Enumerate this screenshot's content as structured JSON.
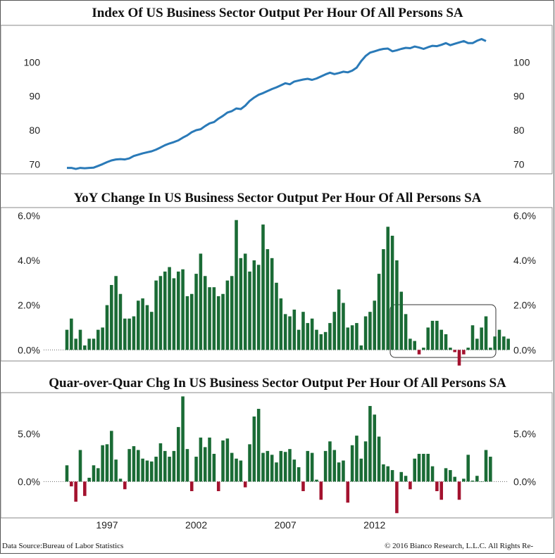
{
  "footer": {
    "source": "Data Source:Bureau of Labor Statistics",
    "copyright": "© 2016 Bianco Research, L.L.C. All Rights Re-"
  },
  "colors": {
    "line": "#2a7ab8",
    "positive": "#1a6b35",
    "negative": "#a3122e"
  },
  "chart_data": [
    {
      "type": "line",
      "title": "Index Of US Business Sector Output Per Hour Of All Persons SA",
      "x_start": 1994.75,
      "x_step": 0.25,
      "ylim": [
        68,
        110
      ],
      "yticks": [
        "70",
        "80",
        "90",
        "100"
      ],
      "ytick_values": [
        70,
        80,
        90,
        100
      ],
      "values": [
        68.9,
        68.9,
        68.6,
        68.9,
        68.8,
        68.9,
        69.0,
        69.5,
        70.0,
        70.6,
        71.1,
        71.4,
        71.5,
        71.4,
        71.7,
        72.4,
        72.8,
        73.2,
        73.5,
        73.8,
        74.3,
        74.9,
        75.6,
        76.1,
        76.5,
        77.0,
        77.8,
        78.5,
        79.4,
        80.0,
        80.3,
        81.2,
        82.0,
        82.4,
        83.4,
        84.2,
        85.2,
        85.6,
        86.4,
        86.2,
        87.2,
        88.6,
        89.6,
        90.4,
        90.9,
        91.5,
        92.1,
        92.6,
        93.2,
        93.8,
        93.5,
        94.3,
        94.6,
        94.9,
        95.1,
        94.8,
        95.2,
        95.8,
        96.4,
        96.9,
        96.5,
        96.8,
        97.2,
        97.0,
        97.5,
        98.4,
        100.3,
        101.8,
        102.8,
        103.2,
        103.6,
        103.9,
        104.0,
        103.2,
        103.5,
        103.9,
        104.2,
        104.1,
        104.6,
        104.3,
        103.9,
        104.4,
        104.8,
        104.7,
        105.1,
        105.6,
        105.0,
        105.4,
        105.8,
        106.2,
        105.6,
        105.6,
        106.3,
        106.8,
        106.2
      ]
    },
    {
      "type": "bar",
      "title": "YoY Change In US Business Sector Output Per Hour Of All Persons SA",
      "x_start": 1994.75,
      "x_step": 0.25,
      "ylim": [
        -0.4,
        6.2
      ],
      "yticks": [
        "0.0%",
        "2.0%",
        "4.0%",
        "6.0%"
      ],
      "ytick_values": [
        0,
        2,
        4,
        6
      ],
      "values": [
        0.9,
        1.4,
        0.5,
        0.9,
        0.2,
        0.5,
        0.5,
        0.9,
        1.0,
        2.0,
        2.9,
        3.3,
        2.5,
        1.4,
        1.4,
        1.5,
        2.2,
        2.3,
        2.0,
        1.7,
        3.1,
        3.3,
        3.5,
        3.7,
        3.2,
        3.5,
        3.6,
        2.4,
        2.5,
        3.4,
        4.3,
        3.3,
        2.8,
        2.8,
        2.4,
        2.5,
        3.1,
        3.3,
        5.8,
        4.1,
        4.3,
        3.5,
        4.0,
        3.8,
        5.6,
        4.5,
        4.1,
        3.0,
        2.3,
        1.6,
        1.5,
        1.8,
        0.9,
        1.7,
        1.2,
        1.4,
        0.9,
        0.7,
        0.8,
        1.2,
        1.7,
        2.7,
        2.1,
        1.0,
        1.1,
        1.2,
        0.2,
        1.5,
        1.7,
        2.2,
        3.4,
        4.5,
        5.5,
        5.1,
        4.0,
        2.6,
        1.6,
        0.5,
        0.4,
        -0.2,
        0.1,
        1.0,
        1.3,
        1.3,
        0.9,
        0.7,
        0.1,
        -0.1,
        -0.7,
        -0.2,
        0.1,
        1.1,
        0.5,
        1.0,
        1.5,
        0.1,
        0.6,
        0.9,
        0.6,
        0.5
      ]
    },
    {
      "type": "bar",
      "title": "Quar-over-Quar Chg In US Business Sector Output Per Hour Of All Persons SA",
      "x_start": 1994.75,
      "x_step": 0.25,
      "ylim": [
        -3.5,
        9.0
      ],
      "yticks": [
        "0.0%",
        "5.0%"
      ],
      "ytick_values": [
        0,
        5
      ],
      "xticks": [
        "1997",
        "2002",
        "2007",
        "2012"
      ],
      "xtick_values": [
        1997,
        2002,
        2007,
        2012
      ],
      "values": [
        1.7,
        -0.5,
        -2.1,
        3.3,
        -1.5,
        0.4,
        1.7,
        1.4,
        3.8,
        3.9,
        5.3,
        2.3,
        0.3,
        -0.8,
        3.4,
        3.7,
        3.3,
        2.4,
        2.2,
        2.1,
        2.6,
        4.0,
        3.2,
        2.6,
        3.2,
        5.7,
        8.9,
        3.4,
        -1.0,
        2.6,
        4.6,
        3.6,
        4.6,
        2.9,
        -1.0,
        4.3,
        4.5,
        3.0,
        2.4,
        2.2,
        -0.6,
        3.9,
        6.8,
        7.6,
        3.0,
        3.2,
        2.8,
        2.0,
        3.2,
        3.1,
        3.4,
        2.3,
        1.5,
        -1.0,
        3.2,
        3.0,
        0.2,
        -1.9,
        3.2,
        4.2,
        3.3,
        2.0,
        2.2,
        -2.2,
        3.8,
        4.8,
        2.4,
        4.2,
        7.9,
        7.0,
        4.7,
        1.8,
        1.6,
        1.2,
        -3.3,
        1.0,
        0.6,
        -0.8,
        2.4,
        2.9,
        2.9,
        2.9,
        1.6,
        -1.0,
        -1.9,
        1.4,
        1.2,
        0.5,
        -1.9,
        0.3,
        2.8,
        0.1,
        0.6,
        0.0,
        3.3,
        2.6
      ]
    }
  ]
}
